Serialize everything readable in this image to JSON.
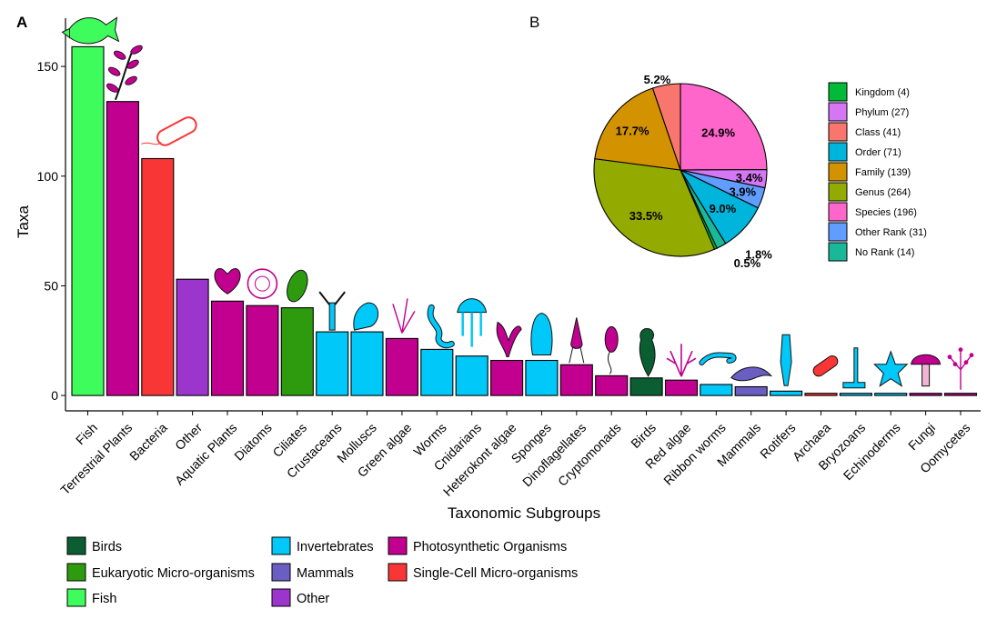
{
  "panel_a_label": "A",
  "panel_b_label": "B",
  "chart_data": [
    {
      "type": "bar",
      "title": "",
      "xlabel": "Taxonomic Subgroups",
      "ylabel": "Taxa",
      "ylim": [
        -7,
        172
      ],
      "yticks": [
        0,
        50,
        100,
        150
      ],
      "categories": [
        "Fish",
        "Terrestrial Plants",
        "Bacteria",
        "Other",
        "Aquatic Plants",
        "Diatoms",
        "Ciliates",
        "Crustaceans",
        "Molluscs",
        "Green algae",
        "Worms",
        "Cnidarians",
        "Heterokont algae",
        "Sponges",
        "Dinoflagellates",
        "Cryptomonads",
        "Birds",
        "Red algae",
        "Ribbon worms",
        "Mammals",
        "Rotifers",
        "Archaea",
        "Bryozoans",
        "Echinoderms",
        "Fungi",
        "Oomycetes"
      ],
      "values": [
        159,
        134,
        108,
        53,
        43,
        41,
        40,
        29,
        29,
        26,
        21,
        18,
        16,
        16,
        14,
        9,
        8,
        7,
        5,
        4,
        2,
        1,
        1,
        1,
        1,
        1
      ],
      "groups": [
        "Fish",
        "Photosynthetic Organisms",
        "Single-Cell Micro-organisms",
        "Other",
        "Photosynthetic Organisms",
        "Photosynthetic Organisms",
        "Eukaryotic Micro-organisms",
        "Invertebrates",
        "Invertebrates",
        "Photosynthetic Organisms",
        "Invertebrates",
        "Invertebrates",
        "Photosynthetic Organisms",
        "Invertebrates",
        "Photosynthetic Organisms",
        "Photosynthetic Organisms",
        "Birds",
        "Photosynthetic Organisms",
        "Invertebrates",
        "Mammals",
        "Invertebrates",
        "Single-Cell Micro-organisms",
        "Invertebrates",
        "Invertebrates",
        "Photosynthetic Organisms",
        "Photosynthetic Organisms"
      ],
      "legend": [
        {
          "name": "Birds",
          "color": "#0B5E32"
        },
        {
          "name": "Eukaryotic Micro-organisms",
          "color": "#2E9A0E"
        },
        {
          "name": "Fish",
          "color": "#3DFC5C"
        },
        {
          "name": "Invertebrates",
          "color": "#00C8F8"
        },
        {
          "name": "Mammals",
          "color": "#6A5EC2"
        },
        {
          "name": "Other",
          "color": "#9B35CC"
        },
        {
          "name": "Photosynthetic Organisms",
          "color": "#C2008F"
        },
        {
          "name": "Single-Cell Micro-organisms",
          "color": "#F93636"
        }
      ],
      "legend_position": "bottom"
    },
    {
      "type": "pie",
      "title": "",
      "slices": [
        {
          "name": "Species (196)",
          "value": 24.9,
          "label": "24.9%",
          "color": "#FF66CC"
        },
        {
          "name": "Phylum (27)",
          "value": 3.4,
          "label": "3.4%",
          "color": "#D577F4"
        },
        {
          "name": "Other Rank (31)",
          "value": 3.9,
          "label": "3.9%",
          "color": "#619CFF"
        },
        {
          "name": "Order (71)",
          "value": 9.0,
          "label": "9.0%",
          "color": "#00B5DB"
        },
        {
          "name": "No Rank (14)",
          "value": 1.8,
          "label": "1.8%",
          "color": "#19B898"
        },
        {
          "name": "Kingdom (4)",
          "value": 0.5,
          "label": "0.5%",
          "color": "#00BA38"
        },
        {
          "name": "Genus (264)",
          "value": 33.5,
          "label": "33.5%",
          "color": "#93AA00"
        },
        {
          "name": "Family (139)",
          "value": 17.7,
          "label": "17.7%",
          "color": "#D39200"
        },
        {
          "name": "Class (41)",
          "value": 5.2,
          "label": "5.2%",
          "color": "#F8766D"
        }
      ],
      "legend": [
        {
          "name": "Kingdom (4)",
          "color": "#00BA38"
        },
        {
          "name": "Phylum (27)",
          "color": "#D577F4"
        },
        {
          "name": "Class (41)",
          "color": "#F8766D"
        },
        {
          "name": "Order (71)",
          "color": "#00B5DB"
        },
        {
          "name": "Family (139)",
          "color": "#D39200"
        },
        {
          "name": "Genus (264)",
          "color": "#93AA00"
        },
        {
          "name": "Species (196)",
          "color": "#FF66CC"
        },
        {
          "name": "Other Rank (31)",
          "color": "#619CFF"
        },
        {
          "name": "No Rank (14)",
          "color": "#19B898"
        }
      ],
      "legend_position": "right"
    }
  ]
}
